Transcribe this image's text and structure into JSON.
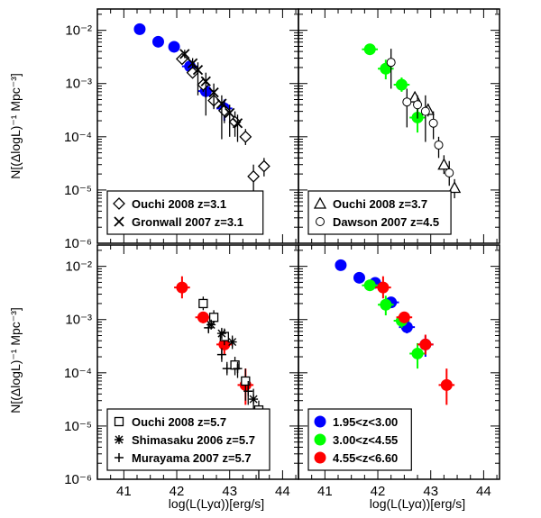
{
  "figure": {
    "xlabel": "log(L(Lyα))[erg/s]",
    "ylabel": "N[(ΔlogL)⁻¹ Mpc⁻³]"
  },
  "axes": {
    "xlim": [
      40.5,
      44.3
    ],
    "ylim_log10": [
      -6,
      -1.6
    ],
    "xticks": [
      41,
      42,
      43,
      44
    ],
    "xtick_labels": [
      "41",
      "42",
      "43",
      "44"
    ],
    "yticks_log10": [
      -6,
      -5,
      -4,
      -3,
      -2
    ],
    "ytick_labels": [
      "10⁻⁶",
      "10⁻⁵",
      "10⁻⁴",
      "10⁻³",
      "10⁻²"
    ]
  },
  "colors": {
    "blue": "#0000ff",
    "green": "#00ff00",
    "red": "#ff0000",
    "black": "#000000"
  },
  "chart_data": [
    {
      "type": "scatter",
      "panel": "top-left",
      "legend_position": "bottom-left",
      "series": [
        {
          "name": "",
          "marker": "filled-circle",
          "color": "#0000ff",
          "points": [
            {
              "x": 41.3,
              "y": 0.0105,
              "xerr": 0.1,
              "ylo": 0.0085,
              "yhi": 0.0125
            },
            {
              "x": 41.65,
              "y": 0.0061,
              "xerr": 0.1,
              "ylo": 0.0052,
              "yhi": 0.0072
            },
            {
              "x": 41.95,
              "y": 0.0049,
              "xerr": 0.1,
              "ylo": 0.0042,
              "yhi": 0.0057
            },
            {
              "x": 42.25,
              "y": 0.0021,
              "xerr": 0.15,
              "ylo": 0.0017,
              "yhi": 0.0026
            },
            {
              "x": 42.55,
              "y": 0.00072,
              "xerr": 0.15,
              "ylo": 0.00055,
              "yhi": 0.00092
            },
            {
              "x": 42.9,
              "y": 0.00034,
              "xerr": 0.15,
              "ylo": 0.0002,
              "yhi": 0.0005
            }
          ]
        },
        {
          "name": "Ouchi 2008 z=3.1",
          "marker": "diamond",
          "color": "#000000",
          "points": [
            {
              "x": 42.1,
              "y": 0.0029,
              "ylo": 0.0025,
              "yhi": 0.0034
            },
            {
              "x": 42.3,
              "y": 0.0016,
              "ylo": 0.0013,
              "yhi": 0.002
            },
            {
              "x": 42.5,
              "y": 0.00095,
              "ylo": 0.0007,
              "yhi": 0.0013
            },
            {
              "x": 42.7,
              "y": 0.00048,
              "ylo": 0.00033,
              "yhi": 0.00068
            },
            {
              "x": 42.9,
              "y": 0.00031,
              "ylo": 0.00018,
              "yhi": 0.00048
            },
            {
              "x": 43.1,
              "y": 0.00019,
              "ylo": 0.0001,
              "yhi": 0.0003
            },
            {
              "x": 43.3,
              "y": 0.0001,
              "ylo": 7e-05,
              "yhi": 0.00014
            },
            {
              "x": 43.45,
              "y": 1.8e-05,
              "ylo": 8e-06,
              "yhi": 3e-05
            },
            {
              "x": 43.65,
              "y": 2.8e-05,
              "ylo": 1.8e-05,
              "yhi": 4e-05
            }
          ]
        },
        {
          "name": "Gronwall 2007 z=3.1",
          "marker": "cross",
          "color": "#000000",
          "points": [
            {
              "x": 42.15,
              "y": 0.0036,
              "ylo": 0.003,
              "yhi": 0.0043
            },
            {
              "x": 42.3,
              "y": 0.0024,
              "ylo": 0.0019,
              "yhi": 0.003
            },
            {
              "x": 42.4,
              "y": 0.0018,
              "ylo": 0.0006,
              "yhi": 0.0025
            },
            {
              "x": 42.55,
              "y": 0.0011,
              "ylo": 0.00025,
              "yhi": 0.0016
            },
            {
              "x": 42.7,
              "y": 0.00068,
              "ylo": 0.00035,
              "yhi": 0.001
            },
            {
              "x": 42.85,
              "y": 0.00042,
              "ylo": 9e-05,
              "yhi": 0.0006
            },
            {
              "x": 43.0,
              "y": 0.00028,
              "ylo": 0.0001,
              "yhi": 0.0004
            },
            {
              "x": 43.15,
              "y": 0.00018,
              "ylo": 8e-05,
              "yhi": 0.00026
            }
          ]
        }
      ]
    },
    {
      "type": "scatter",
      "panel": "top-right",
      "legend_position": "bottom-left",
      "series": [
        {
          "name": "",
          "marker": "filled-circle",
          "color": "#00ff00",
          "points": [
            {
              "x": 41.85,
              "y": 0.0044,
              "xerr": 0.15,
              "ylo": 0.0038,
              "yhi": 0.0051
            },
            {
              "x": 42.15,
              "y": 0.0019,
              "xerr": 0.15,
              "ylo": 0.0012,
              "yhi": 0.0028
            },
            {
              "x": 42.45,
              "y": 0.00095,
              "xerr": 0.15,
              "ylo": 0.0007,
              "yhi": 0.0013
            },
            {
              "x": 42.75,
              "y": 0.00023,
              "xerr": 0.15,
              "ylo": 0.00012,
              "yhi": 0.00036
            }
          ]
        },
        {
          "name": "Ouchi 2008 z=3.7",
          "marker": "triangle",
          "color": "#000000",
          "points": [
            {
              "x": 42.7,
              "y": 0.00055,
              "ylo": 0.00045,
              "yhi": 0.00068
            },
            {
              "x": 42.95,
              "y": 0.00032,
              "ylo": 0.00024,
              "yhi": 0.00042
            },
            {
              "x": 43.25,
              "y": 3e-05,
              "ylo": 2e-05,
              "yhi": 4.5e-05
            },
            {
              "x": 43.45,
              "y": 1.1e-05,
              "ylo": 7e-06,
              "yhi": 1.6e-05
            }
          ]
        },
        {
          "name": "Dawson 2007 z=4.5",
          "marker": "open-circle",
          "color": "#000000",
          "points": [
            {
              "x": 42.25,
              "y": 0.0025,
              "ylo": 0.0008,
              "yhi": 0.0045
            },
            {
              "x": 42.55,
              "y": 0.00045,
              "ylo": 0.00015,
              "yhi": 0.0008
            },
            {
              "x": 42.75,
              "y": 0.0004,
              "ylo": 0.00022,
              "yhi": 0.0006
            },
            {
              "x": 42.9,
              "y": 0.0003,
              "ylo": 8e-05,
              "yhi": 0.0006
            },
            {
              "x": 43.05,
              "y": 0.00018,
              "ylo": 9e-05,
              "yhi": 0.0003
            },
            {
              "x": 43.15,
              "y": 7e-05,
              "ylo": 4e-05,
              "yhi": 0.0001
            },
            {
              "x": 43.35,
              "y": 2.1e-05,
              "ylo": 1.2e-05,
              "yhi": 3.5e-05
            }
          ]
        }
      ]
    },
    {
      "type": "scatter",
      "panel": "bottom-left",
      "legend_position": "bottom-left",
      "series": [
        {
          "name": "",
          "marker": "filled-circle",
          "color": "#ff0000",
          "points": [
            {
              "x": 42.1,
              "y": 0.004,
              "xerr": 0.15,
              "ylo": 0.0025,
              "yhi": 0.0065
            },
            {
              "x": 42.5,
              "y": 0.0011,
              "xerr": 0.15,
              "ylo": 0.00085,
              "yhi": 0.0014
            },
            {
              "x": 42.9,
              "y": 0.00034,
              "xerr": 0.15,
              "ylo": 0.00022,
              "yhi": 0.00052
            },
            {
              "x": 43.3,
              "y": 5.9e-05,
              "xerr": 0.15,
              "ylo": 2.5e-05,
              "yhi": 0.00012
            }
          ]
        },
        {
          "name": "Ouchi 2008 z=5.7",
          "marker": "square",
          "color": "#000000",
          "points": [
            {
              "x": 42.5,
              "y": 0.002,
              "ylo": 0.0015,
              "yhi": 0.0027
            },
            {
              "x": 42.7,
              "y": 0.0011,
              "ylo": 0.0008,
              "yhi": 0.0015
            },
            {
              "x": 42.9,
              "y": 0.00048,
              "ylo": 0.00033,
              "yhi": 0.00068
            },
            {
              "x": 43.1,
              "y": 0.00014,
              "ylo": 9e-05,
              "yhi": 0.0002
            },
            {
              "x": 43.3,
              "y": 7e-05,
              "ylo": 3e-05,
              "yhi": 0.00012
            },
            {
              "x": 43.55,
              "y": 2e-05,
              "ylo": 1e-06,
              "yhi": 3e-05
            }
          ]
        },
        {
          "name": "Shimasaku 2006 z=5.7",
          "marker": "asterisk",
          "color": "#000000",
          "points": [
            {
              "x": 42.65,
              "y": 0.0008,
              "ylo": 0.00065,
              "yhi": 0.001
            },
            {
              "x": 42.85,
              "y": 0.00055,
              "ylo": 0.00042,
              "yhi": 0.0007
            },
            {
              "x": 43.05,
              "y": 0.00038,
              "ylo": 0.00028,
              "yhi": 0.0005
            },
            {
              "x": 43.45,
              "y": 3.2e-05,
              "ylo": 1.5e-05,
              "yhi": 5e-05
            }
          ]
        },
        {
          "name": "Murayama 2007 z=5.7",
          "marker": "plus",
          "color": "#000000",
          "points": [
            {
              "x": 42.6,
              "y": 0.0007,
              "ylo": 0.00055,
              "yhi": 0.0009
            },
            {
              "x": 42.85,
              "y": 0.00022,
              "ylo": 0.00016,
              "yhi": 0.00029
            },
            {
              "x": 42.95,
              "y": 0.00012,
              "ylo": 9e-05,
              "yhi": 0.00016
            },
            {
              "x": 43.15,
              "y": 0.00012,
              "ylo": 8e-05,
              "yhi": 0.00016
            },
            {
              "x": 43.35,
              "y": 4.5e-05,
              "ylo": 2.5e-05,
              "yhi": 7e-05
            }
          ]
        }
      ]
    },
    {
      "type": "scatter",
      "panel": "bottom-right",
      "legend_position": "bottom-left",
      "series": [
        {
          "name": "1.95<z<3.00",
          "marker": "filled-circle",
          "color": "#0000ff",
          "points": [
            {
              "x": 41.3,
              "y": 0.0105,
              "xerr": 0.1,
              "ylo": 0.0085,
              "yhi": 0.0125
            },
            {
              "x": 41.65,
              "y": 0.0061,
              "xerr": 0.1,
              "ylo": 0.0052,
              "yhi": 0.0072
            },
            {
              "x": 41.95,
              "y": 0.0049,
              "xerr": 0.1,
              "ylo": 0.0042,
              "yhi": 0.0057
            },
            {
              "x": 42.25,
              "y": 0.0021,
              "xerr": 0.15,
              "ylo": 0.0017,
              "yhi": 0.0026
            },
            {
              "x": 42.55,
              "y": 0.00072,
              "xerr": 0.15,
              "ylo": 0.00055,
              "yhi": 0.00092
            },
            {
              "x": 42.9,
              "y": 0.00034,
              "xerr": 0.15,
              "ylo": 0.0002,
              "yhi": 0.0005
            }
          ]
        },
        {
          "name": "3.00<z<4.55",
          "marker": "filled-circle",
          "color": "#00ff00",
          "points": [
            {
              "x": 41.85,
              "y": 0.0044,
              "xerr": 0.15,
              "ylo": 0.0038,
              "yhi": 0.0051
            },
            {
              "x": 42.15,
              "y": 0.0019,
              "xerr": 0.15,
              "ylo": 0.0012,
              "yhi": 0.0028
            },
            {
              "x": 42.45,
              "y": 0.00095,
              "xerr": 0.15,
              "ylo": 0.0007,
              "yhi": 0.0013
            },
            {
              "x": 42.75,
              "y": 0.00023,
              "xerr": 0.15,
              "ylo": 0.00012,
              "yhi": 0.00036
            }
          ]
        },
        {
          "name": "4.55<z<6.60",
          "marker": "filled-circle",
          "color": "#ff0000",
          "points": [
            {
              "x": 42.1,
              "y": 0.004,
              "xerr": 0.15,
              "ylo": 0.0025,
              "yhi": 0.0065
            },
            {
              "x": 42.5,
              "y": 0.0011,
              "xerr": 0.15,
              "ylo": 0.00085,
              "yhi": 0.0014
            },
            {
              "x": 42.9,
              "y": 0.00034,
              "xerr": 0.15,
              "ylo": 0.00022,
              "yhi": 0.00052
            },
            {
              "x": 43.3,
              "y": 5.9e-05,
              "xerr": 0.15,
              "ylo": 2.5e-05,
              "yhi": 0.00012
            }
          ]
        }
      ]
    }
  ]
}
